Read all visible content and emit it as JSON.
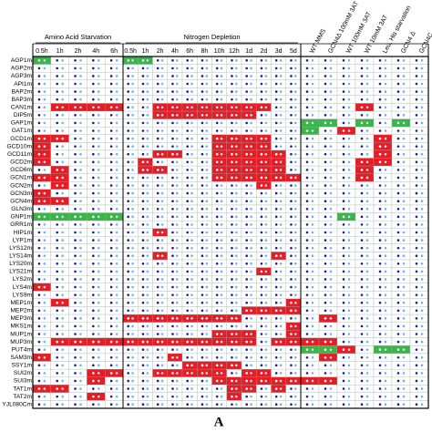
{
  "figure_label": "A",
  "colors": {
    "r": "#e41e26",
    "g": "#3cb44a"
  },
  "groups": [
    {
      "label": "Amino Acid Starvation",
      "columns": [
        "0.5h",
        "1h",
        "2h",
        "4h",
        "6h"
      ]
    },
    {
      "label": "Nitrogen Depletion",
      "columns": [
        "0.5h",
        "1h",
        "2h",
        "4h",
        "6h",
        "8h",
        "10h",
        "12h",
        "1d",
        "2d",
        "3d",
        "5d"
      ]
    },
    {
      "columns": [
        "WT MMS",
        "GCN4Δ 100mM 3AT",
        "WT 100mM 3AT",
        "WT 10mM 3AT",
        "Leu, His starvation",
        "GCN4 Δ",
        "GCN4C"
      ]
    }
  ],
  "rows": [
    {
      "label": "AGP1m",
      "cells": "g....gg................."
    },
    {
      "label": "AGP2m",
      "cells": "........................"
    },
    {
      "label": "AGP3m",
      "cells": "........................"
    },
    {
      "label": "API1m",
      "cells": "........................"
    },
    {
      "label": "BAP2m",
      "cells": "........................"
    },
    {
      "label": "BAP3m",
      "cells": "........................"
    },
    {
      "label": "CAN1m",
      "cells": ".rrrr..rrrrrrrr.....r..."
    },
    {
      "label": "DIP5m",
      "cells": ".......rrrrrrr.........."
    },
    {
      "label": "GAP1m",
      "cells": ".................gg.g.g."
    },
    {
      "label": "GAT1m",
      "cells": ".................g.r...."
    },
    {
      "label": "GCD1m",
      "cells": "rr.........rrrr......r.."
    },
    {
      "label": "GCD10m",
      "cells": "r..........rrrr......r.."
    },
    {
      "label": "GCD11m",
      "cells": "r......rr..rrrrr.....r.."
    },
    {
      "label": "GCD2m",
      "cells": "r.....r....rrrrr....rr.."
    },
    {
      "label": "GCD6m",
      "cells": ".r....rr...rrrrr....r..."
    },
    {
      "label": "GCN1m",
      "cells": "rr.........rrrrrr...r..."
    },
    {
      "label": "GCN2m",
      "cells": ".r............r........."
    },
    {
      "label": "GCN3m",
      "cells": "r......................."
    },
    {
      "label": "GCN4m",
      "cells": "rr......................"
    },
    {
      "label": "GLN3m",
      "cells": "........................"
    },
    {
      "label": "GNP1m",
      "cells": "ggggg..............g...."
    },
    {
      "label": "GRR1m",
      "cells": "........................"
    },
    {
      "label": "HIP1m",
      "cells": ".......r................"
    },
    {
      "label": "LYP1m",
      "cells": "........................"
    },
    {
      "label": "LYS12m",
      "cells": "........................"
    },
    {
      "label": "LYS14m",
      "cells": ".......r.......r........"
    },
    {
      "label": "LYS20m",
      "cells": "........................"
    },
    {
      "label": "LYS21m",
      "cells": "..............r........."
    },
    {
      "label": "LYS2m",
      "cells": "........................"
    },
    {
      "label": "LYS4m",
      "cells": "r......................."
    },
    {
      "label": "LYS9m",
      "cells": "........................"
    },
    {
      "label": "MEP1m",
      "cells": ".r..............r......."
    },
    {
      "label": "MEP2m",
      "cells": ".............rrrr......."
    },
    {
      "label": "MEP3m",
      "cells": ".....rrrrrrrr.....r....."
    },
    {
      "label": "MKS1m",
      "cells": "................r......."
    },
    {
      "label": "MUP1m",
      "cells": "...........rrr..r......."
    },
    {
      "label": "MUP3m",
      "cells": ".rrrrrrrrrrrrr.rrrr....."
    },
    {
      "label": "PUT4m",
      "cells": ".................ggr.gg."
    },
    {
      "label": "SAM3m",
      "cells": "r.......r.........r....."
    },
    {
      "label": "SSY1m",
      "cells": ".........rrrr..........."
    },
    {
      "label": "SUI2m",
      "cells": "...rr..rrrrr.rr........."
    },
    {
      "label": "SUI3m",
      "cells": "...r.......rrrrrrrr....."
    },
    {
      "label": "TAT1m",
      "cells": "rr..........rr.r........"
    },
    {
      "label": "TAT2m",
      "cells": "...r........r..........."
    },
    {
      "label": "YJL080Cm",
      "cells": "........................"
    }
  ]
}
